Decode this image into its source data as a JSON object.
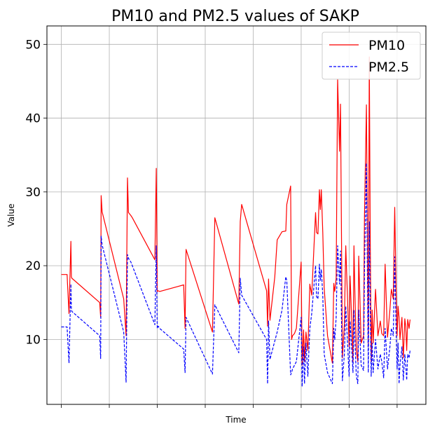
{
  "chart_data": {
    "type": "line",
    "title": "PM10 and PM2.5 values of SAKP",
    "xlabel": "Time",
    "ylabel": "Value",
    "ylim": [
      1.2,
      52.5
    ],
    "xlim": [
      -0.3,
      7.6
    ],
    "yticks": [
      10,
      20,
      30,
      40,
      50
    ],
    "xticks": [
      0,
      1,
      2,
      3,
      4,
      5,
      6,
      7
    ],
    "grid": true,
    "legend_position": "top-right",
    "series": [
      {
        "name": "PM10",
        "color": "#ff0000",
        "style": "solid",
        "x": [
          0,
          0.12,
          0.13,
          0.16,
          0.2,
          0.21,
          0.22,
          0.8,
          0.82,
          0.83,
          0.85,
          1.3,
          1.35,
          1.38,
          1.4,
          1.45,
          1.48,
          1.95,
          1.98,
          2.0,
          2.02,
          2.05,
          2.55,
          2.58,
          2.6,
          3.15,
          3.2,
          3.7,
          3.73,
          3.76,
          4.28,
          4.3,
          4.32,
          4.35,
          4.45,
          4.5,
          4.6,
          4.68,
          4.7,
          4.78,
          4.8,
          4.82,
          4.86,
          4.9,
          5.0,
          5.02,
          5.05,
          5.07,
          5.1,
          5.14,
          5.18,
          5.22,
          5.3,
          5.32,
          5.35,
          5.38,
          5.4,
          5.42,
          5.45,
          5.48,
          5.55,
          5.65,
          5.68,
          5.7,
          5.73,
          5.76,
          5.8,
          5.82,
          5.86,
          5.9,
          5.93,
          6.0,
          6.02,
          6.05,
          6.08,
          6.1,
          6.12,
          6.15,
          6.18,
          6.2,
          6.25,
          6.3,
          6.32,
          6.36,
          6.4,
          6.42,
          6.44,
          6.46,
          6.48,
          6.5,
          6.55,
          6.6,
          6.65,
          6.68,
          6.72,
          6.75,
          6.8,
          6.85,
          6.88,
          6.92,
          6.95,
          6.98,
          7.0,
          7.02,
          7.04,
          7.06,
          7.1,
          7.13,
          7.16,
          7.18,
          7.2,
          7.22,
          7.25,
          7.27
        ],
        "values": [
          18.8,
          18.8,
          17.5,
          13.5,
          23.3,
          18.5,
          18.3,
          15.0,
          13.0,
          29.5,
          27.3,
          15.5,
          10.5,
          31.9,
          27.2,
          26.8,
          26.5,
          20.8,
          33.2,
          16.5,
          16.6,
          16.5,
          17.4,
          11.5,
          22.2,
          11.0,
          26.5,
          14.8,
          26.0,
          28.3,
          16.6,
          11.8,
          18.2,
          12.6,
          18.5,
          23.5,
          24.6,
          24.7,
          28.3,
          30.8,
          10.0,
          10.5,
          10.8,
          11.5,
          20.5,
          6.5,
          11.3,
          7.0,
          11.0,
          8.5,
          17.5,
          16.0,
          27.2,
          24.5,
          24.3,
          30.3,
          27.6,
          30.3,
          24.5,
          17.0,
          10.5,
          6.8,
          17.6,
          16.5,
          18.3,
          45.3,
          35.5,
          41.9,
          7.5,
          12.0,
          22.7,
          9.0,
          18.6,
          13.0,
          7.0,
          22.7,
          16.5,
          8.5,
          7.0,
          21.3,
          9.5,
          10.5,
          26.5,
          41.8,
          9.0,
          48.3,
          23.0,
          7.0,
          14.0,
          9.5,
          16.8,
          10.5,
          12.5,
          10.8,
          10.5,
          20.2,
          10.3,
          14.0,
          16.8,
          15.5,
          27.9,
          16.5,
          10.5,
          14.5,
          13.0,
          10.0,
          13.0,
          7.5,
          12.8,
          11.8,
          8.5,
          12.7,
          11.5,
          12.7
        ]
      },
      {
        "name": "PM2.5",
        "color": "#0000ff",
        "style": "dashed",
        "x": [
          0,
          0.12,
          0.13,
          0.16,
          0.2,
          0.21,
          0.22,
          0.8,
          0.82,
          0.83,
          0.85,
          1.3,
          1.35,
          1.38,
          1.4,
          1.45,
          1.48,
          1.95,
          1.98,
          2.0,
          2.02,
          2.05,
          2.55,
          2.58,
          2.6,
          3.15,
          3.2,
          3.7,
          3.73,
          3.76,
          4.28,
          4.3,
          4.32,
          4.35,
          4.45,
          4.5,
          4.6,
          4.68,
          4.7,
          4.78,
          4.8,
          4.82,
          4.86,
          4.9,
          5.0,
          5.02,
          5.05,
          5.07,
          5.1,
          5.14,
          5.18,
          5.22,
          5.3,
          5.32,
          5.35,
          5.38,
          5.4,
          5.42,
          5.45,
          5.48,
          5.55,
          5.65,
          5.68,
          5.7,
          5.73,
          5.76,
          5.8,
          5.82,
          5.86,
          5.9,
          5.93,
          6.0,
          6.02,
          6.05,
          6.08,
          6.1,
          6.12,
          6.15,
          6.18,
          6.2,
          6.25,
          6.3,
          6.32,
          6.36,
          6.4,
          6.42,
          6.44,
          6.46,
          6.48,
          6.5,
          6.55,
          6.6,
          6.65,
          6.68,
          6.72,
          6.75,
          6.8,
          6.85,
          6.88,
          6.92,
          6.95,
          6.98,
          7.0,
          7.02,
          7.04,
          7.06,
          7.1,
          7.13,
          7.16,
          7.18,
          7.2,
          7.22,
          7.25,
          7.27
        ],
        "values": [
          11.7,
          11.7,
          10.5,
          6.8,
          17.5,
          14.2,
          13.8,
          10.5,
          7.4,
          24.0,
          22.8,
          11.0,
          4.2,
          21.5,
          21.0,
          20.5,
          20.0,
          12.0,
          22.7,
          11.5,
          11.8,
          11.5,
          8.7,
          5.5,
          13.0,
          5.3,
          14.7,
          8.2,
          18.3,
          16.0,
          10.0,
          4.0,
          12.5,
          7.3,
          9.8,
          11.0,
          14.0,
          18.5,
          18.0,
          5.2,
          5.5,
          6.0,
          6.5,
          7.0,
          13.0,
          3.6,
          9.0,
          4.0,
          9.5,
          5.0,
          11.5,
          13.5,
          20.0,
          15.8,
          15.5,
          20.2,
          18.0,
          19.5,
          16.0,
          8.0,
          5.5,
          4.0,
          11.5,
          10.0,
          13.0,
          22.7,
          17.5,
          22.0,
          4.4,
          8.0,
          14.5,
          5.0,
          12.5,
          9.0,
          5.5,
          14.0,
          10.0,
          5.0,
          4.0,
          14.0,
          6.5,
          5.8,
          19.3,
          33.9,
          5.5,
          26.0,
          14.0,
          5.0,
          9.5,
          5.5,
          10.0,
          6.0,
          8.0,
          7.0,
          4.8,
          11.5,
          6.0,
          9.0,
          11.5,
          10.5,
          21.2,
          11.0,
          6.0,
          9.5,
          4.0,
          6.5,
          9.0,
          4.5,
          8.0,
          6.5,
          4.5,
          8.0,
          7.5,
          8.5
        ]
      }
    ]
  }
}
